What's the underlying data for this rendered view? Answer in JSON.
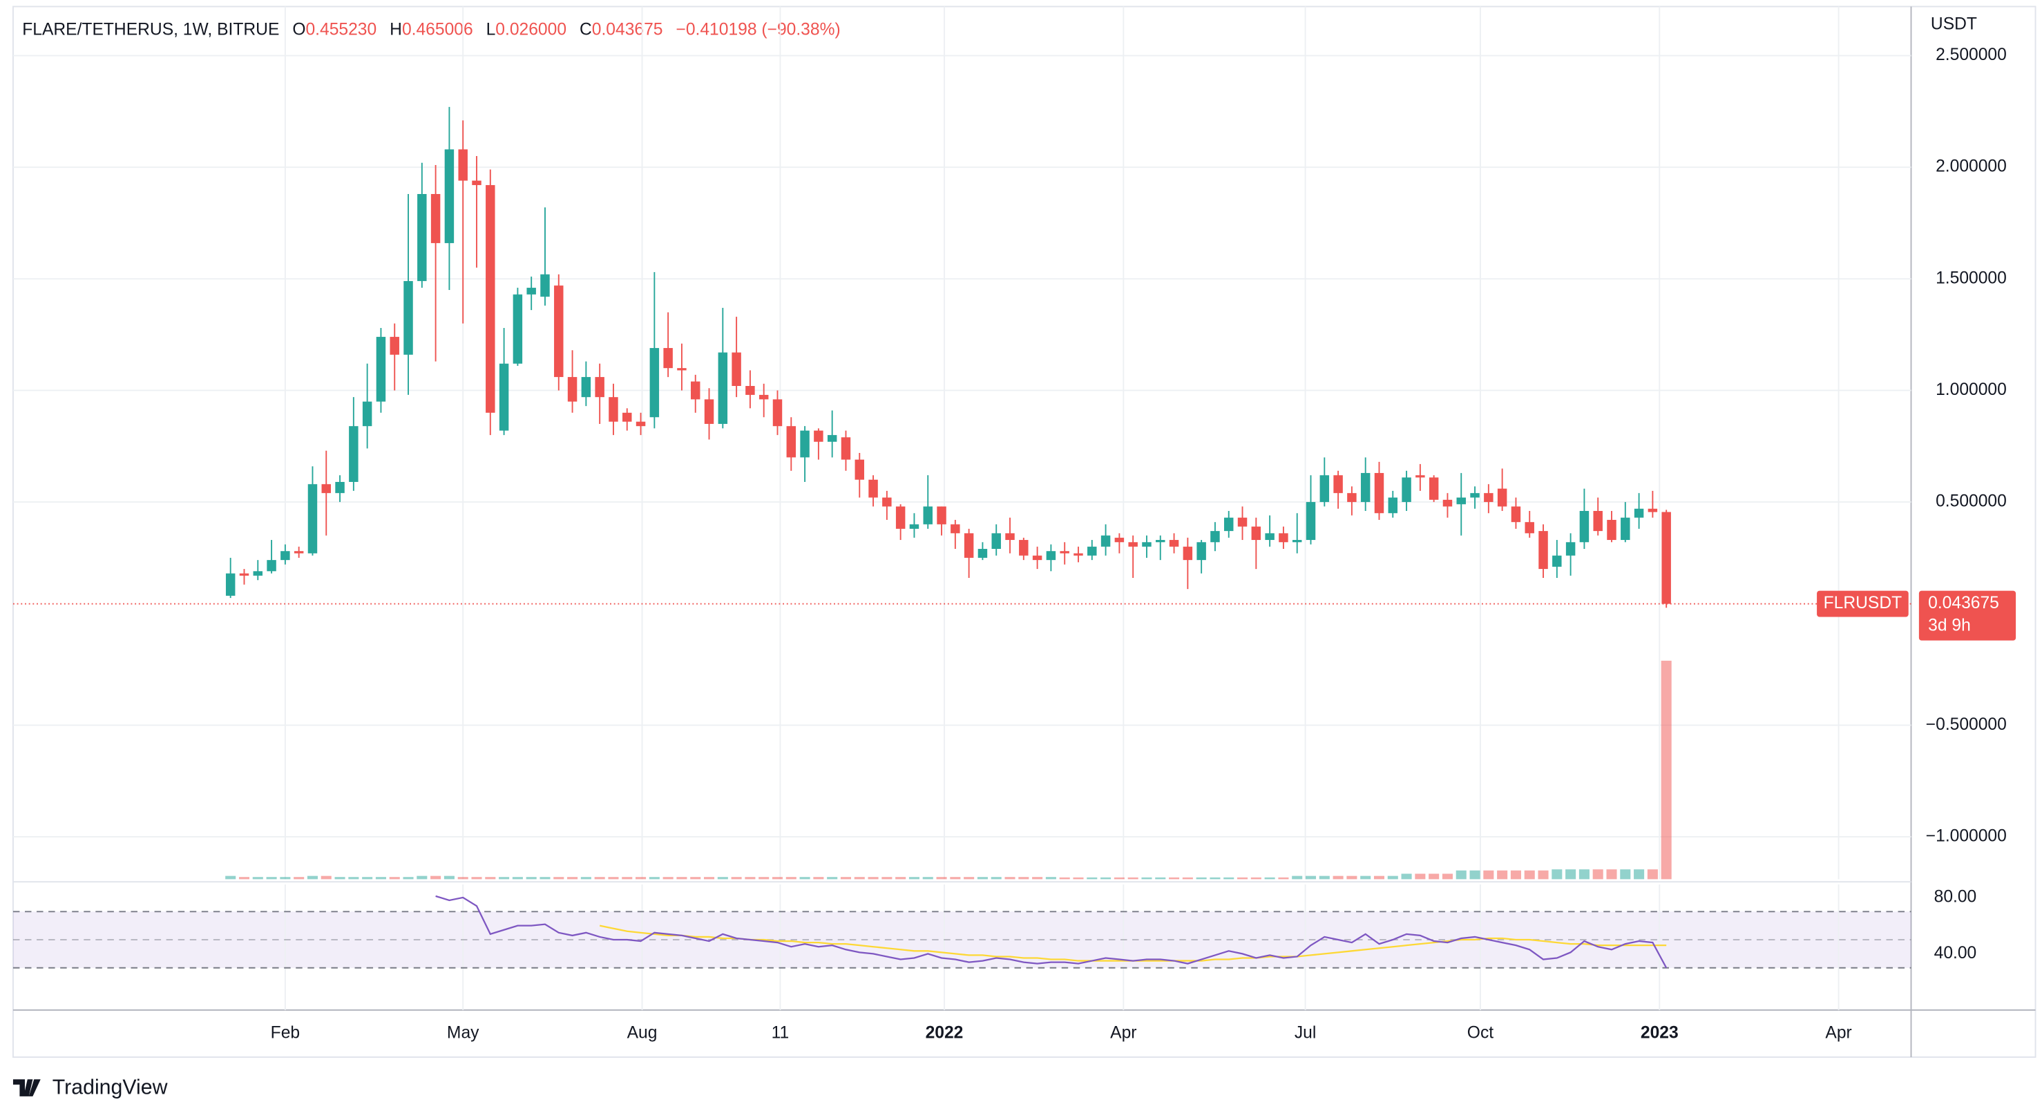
{
  "header": {
    "symbol": "FLARE/TETHERUS, 1W, BITRUE",
    "fields": [
      {
        "key": "O",
        "value": "0.455230"
      },
      {
        "key": "H",
        "value": "0.465006"
      },
      {
        "key": "L",
        "value": "0.026000"
      },
      {
        "key": "C",
        "value": "0.043675"
      }
    ],
    "change": "−0.410198 (−90.38%)"
  },
  "last_price": {
    "symbol": "FLRUSDT",
    "price": "0.043675",
    "countdown": "3d 9h"
  },
  "brand": "TradingView",
  "chart_data": {
    "type": "candlestick",
    "up_color": "#26a69a",
    "down_color": "#ef5350",
    "grid": true,
    "y_axis_label": "USDT",
    "open": [
      0.08,
      0.18,
      0.17,
      0.19,
      0.24,
      0.28,
      0.27,
      0.58,
      0.54,
      0.59,
      0.84,
      0.95,
      1.24,
      1.16,
      1.49,
      1.88,
      1.66,
      2.08,
      1.94,
      1.92,
      0.82,
      1.12,
      1.43,
      1.42,
      1.47,
      1.06,
      0.97,
      1.06,
      0.97,
      0.9,
      0.86,
      0.88,
      1.19,
      1.1,
      1.04,
      0.96,
      0.85,
      1.17,
      1.02,
      0.98,
      0.96,
      0.84,
      0.7,
      0.82,
      0.77,
      0.79,
      0.69,
      0.6,
      0.52,
      0.48,
      0.38,
      0.4,
      0.48,
      0.4,
      0.36,
      0.25,
      0.29,
      0.36,
      0.33,
      0.26,
      0.24,
      0.28,
      0.27,
      0.26,
      0.3,
      0.34,
      0.32,
      0.3,
      0.32,
      0.33,
      0.3,
      0.24,
      0.32,
      0.37,
      0.43,
      0.39,
      0.33,
      0.36,
      0.32,
      0.33,
      0.5,
      0.62,
      0.54,
      0.5,
      0.63,
      0.45,
      0.5,
      0.62,
      0.61,
      0.51,
      0.49,
      0.52,
      0.54,
      0.56,
      0.48,
      0.41,
      0.37,
      0.21,
      0.26,
      0.32,
      0.46,
      0.42,
      0.33,
      0.43,
      0.47,
      0.45523
    ],
    "high": [
      0.25,
      0.2,
      0.24,
      0.33,
      0.31,
      0.3,
      0.66,
      0.73,
      0.62,
      0.97,
      1.12,
      1.28,
      1.3,
      1.88,
      2.02,
      2.01,
      2.27,
      2.21,
      2.05,
      1.99,
      1.28,
      1.46,
      1.51,
      1.82,
      1.52,
      1.18,
      1.13,
      1.12,
      1.03,
      0.92,
      0.9,
      1.53,
      1.35,
      1.21,
      1.07,
      1.01,
      1.37,
      1.33,
      1.09,
      1.03,
      1.0,
      0.88,
      0.84,
      0.83,
      0.91,
      0.82,
      0.72,
      0.62,
      0.55,
      0.49,
      0.45,
      0.62,
      0.48,
      0.42,
      0.38,
      0.32,
      0.4,
      0.43,
      0.34,
      0.3,
      0.31,
      0.32,
      0.3,
      0.33,
      0.4,
      0.36,
      0.35,
      0.35,
      0.35,
      0.36,
      0.34,
      0.33,
      0.41,
      0.46,
      0.48,
      0.43,
      0.44,
      0.39,
      0.45,
      0.62,
      0.7,
      0.64,
      0.57,
      0.7,
      0.68,
      0.55,
      0.64,
      0.67,
      0.62,
      0.54,
      0.63,
      0.57,
      0.58,
      0.65,
      0.52,
      0.46,
      0.4,
      0.33,
      0.36,
      0.56,
      0.52,
      0.46,
      0.5,
      0.54,
      0.55,
      0.465006
    ],
    "low": [
      0.07,
      0.13,
      0.15,
      0.18,
      0.22,
      0.25,
      0.26,
      0.35,
      0.5,
      0.55,
      0.74,
      0.9,
      1.0,
      0.98,
      1.46,
      1.13,
      1.45,
      1.3,
      1.55,
      0.8,
      0.8,
      1.11,
      1.36,
      1.38,
      1.0,
      0.9,
      0.93,
      0.85,
      0.8,
      0.82,
      0.8,
      0.83,
      1.06,
      1.0,
      0.9,
      0.78,
      0.83,
      0.97,
      0.92,
      0.88,
      0.8,
      0.64,
      0.59,
      0.69,
      0.7,
      0.64,
      0.52,
      0.48,
      0.42,
      0.33,
      0.34,
      0.38,
      0.35,
      0.29,
      0.16,
      0.24,
      0.26,
      0.27,
      0.24,
      0.2,
      0.19,
      0.22,
      0.23,
      0.24,
      0.26,
      0.27,
      0.16,
      0.25,
      0.24,
      0.27,
      0.11,
      0.18,
      0.28,
      0.34,
      0.33,
      0.2,
      0.3,
      0.29,
      0.27,
      0.31,
      0.48,
      0.47,
      0.44,
      0.46,
      0.42,
      0.43,
      0.46,
      0.55,
      0.5,
      0.43,
      0.35,
      0.47,
      0.45,
      0.46,
      0.38,
      0.34,
      0.16,
      0.16,
      0.17,
      0.29,
      0.35,
      0.32,
      0.32,
      0.38,
      0.43,
      0.026
    ],
    "close": [
      0.18,
      0.17,
      0.19,
      0.24,
      0.28,
      0.27,
      0.58,
      0.54,
      0.59,
      0.84,
      0.95,
      1.24,
      1.16,
      1.49,
      1.88,
      1.66,
      2.08,
      1.94,
      1.92,
      0.9,
      1.12,
      1.43,
      1.46,
      1.52,
      1.06,
      0.95,
      1.06,
      0.97,
      0.86,
      0.86,
      0.84,
      1.19,
      1.1,
      1.09,
      0.96,
      0.85,
      1.17,
      1.02,
      0.98,
      0.96,
      0.84,
      0.7,
      0.82,
      0.77,
      0.8,
      0.69,
      0.6,
      0.52,
      0.48,
      0.38,
      0.4,
      0.48,
      0.4,
      0.36,
      0.25,
      0.29,
      0.36,
      0.33,
      0.26,
      0.24,
      0.28,
      0.27,
      0.26,
      0.3,
      0.35,
      0.32,
      0.3,
      0.32,
      0.33,
      0.3,
      0.24,
      0.32,
      0.37,
      0.43,
      0.39,
      0.33,
      0.36,
      0.32,
      0.33,
      0.5,
      0.62,
      0.54,
      0.5,
      0.63,
      0.45,
      0.52,
      0.61,
      0.61,
      0.51,
      0.48,
      0.52,
      0.54,
      0.5,
      0.48,
      0.41,
      0.36,
      0.2,
      0.26,
      0.32,
      0.46,
      0.37,
      0.33,
      0.43,
      0.47,
      0.455,
      0.043675
    ],
    "xlim": [
      -15.9,
      122.9
    ],
    "xticks": [
      {
        "value": 4.0,
        "label": "Feb"
      },
      {
        "value": 17.0,
        "label": "May"
      },
      {
        "value": 30.1,
        "label": "Aug"
      },
      {
        "value": 40.2,
        "label": "11"
      },
      {
        "value": 52.2,
        "label": "2022"
      },
      {
        "value": 65.3,
        "label": "Apr"
      },
      {
        "value": 78.6,
        "label": "Jul"
      },
      {
        "value": 91.4,
        "label": "Oct"
      },
      {
        "value": 104.5,
        "label": "2023"
      },
      {
        "value": 117.6,
        "label": "Apr"
      }
    ],
    "ylim": [
      -1.19,
      2.72
    ],
    "yticks": [
      {
        "value": 2.5,
        "label": "2.500000"
      },
      {
        "value": 2.0,
        "label": "2.000000"
      },
      {
        "value": 1.5,
        "label": "1.500000"
      },
      {
        "value": 1.0,
        "label": "1.000000"
      },
      {
        "value": 0.5,
        "label": "0.500000"
      },
      {
        "value": -0.5,
        "label": "−0.500000"
      },
      {
        "value": -1.0,
        "label": "−1.000000"
      }
    ],
    "volume": {
      "ylim": [
        0,
        100
      ],
      "values": [
        1.5,
        1,
        1,
        1,
        1,
        1,
        1.5,
        1.5,
        1,
        1,
        1,
        1,
        1,
        1,
        1.5,
        1.5,
        1.5,
        1,
        1,
        1,
        1,
        1,
        1,
        1,
        1,
        1,
        1,
        1,
        1,
        1,
        1,
        1,
        1,
        1,
        1,
        1,
        1,
        1,
        1,
        1,
        1,
        1,
        1,
        1,
        1,
        1,
        1,
        1,
        1,
        1,
        1,
        1,
        1,
        1,
        1,
        1,
        1,
        1,
        1,
        1,
        1,
        0.8,
        0.8,
        0.8,
        0.8,
        0.8,
        0.8,
        0.8,
        0.8,
        0.8,
        0.8,
        0.8,
        0.8,
        0.8,
        0.8,
        0.8,
        0.8,
        0.8,
        1.5,
        1.5,
        1.5,
        1.5,
        1.5,
        1.5,
        1.5,
        1.5,
        2.5,
        2.5,
        2.5,
        2.5,
        4,
        4,
        4,
        4,
        4,
        4,
        4,
        4.5,
        4.5,
        4.5,
        4.5,
        4.5,
        4.5,
        4.5,
        4.5,
        100
      ]
    },
    "rsi": {
      "ylim": [
        0,
        89.3
      ],
      "yticks": [
        {
          "value": 80,
          "label": "80.00"
        },
        {
          "value": 40,
          "label": "40.00"
        }
      ],
      "levels": [
        70,
        50,
        30
      ],
      "color": "#7e57c2",
      "ma_color": "#fdd835",
      "values": [
        null,
        null,
        null,
        null,
        null,
        null,
        null,
        null,
        null,
        null,
        null,
        null,
        null,
        null,
        null,
        81,
        78,
        80,
        74,
        54,
        57,
        60,
        60,
        61,
        55,
        53,
        55,
        52,
        50,
        50,
        49,
        55,
        54,
        53,
        51,
        49,
        54,
        51,
        50,
        49,
        48,
        45,
        47,
        45,
        46,
        43,
        41,
        40,
        38,
        36,
        37,
        40,
        37,
        36,
        34,
        35,
        37,
        36,
        34,
        33,
        34,
        34,
        33,
        35,
        37,
        36,
        35,
        36,
        36,
        35,
        33,
        36,
        39,
        42,
        40,
        37,
        39,
        37,
        38,
        46,
        52,
        50,
        48,
        54,
        47,
        50,
        54,
        53,
        49,
        48,
        51,
        52,
        50,
        48,
        46,
        43,
        36,
        37,
        41,
        49,
        45,
        43,
        47,
        49,
        48,
        30
      ],
      "ma": [
        null,
        null,
        null,
        null,
        null,
        null,
        null,
        null,
        null,
        null,
        null,
        null,
        null,
        null,
        null,
        null,
        null,
        null,
        null,
        null,
        null,
        null,
        null,
        null,
        null,
        null,
        null,
        60,
        58,
        56,
        55,
        54,
        53,
        53,
        52,
        52,
        51,
        51,
        50,
        50,
        49,
        49,
        48,
        48,
        47,
        47,
        46,
        45,
        44,
        43,
        42,
        42,
        41,
        40,
        39,
        39,
        38,
        38,
        37,
        37,
        36,
        36,
        35,
        35,
        35,
        35,
        35,
        35,
        35,
        35,
        35,
        35,
        36,
        36,
        37,
        37,
        38,
        38,
        38,
        39,
        40,
        41,
        42,
        43,
        44,
        45,
        46,
        47,
        48,
        49,
        50,
        50,
        51,
        51,
        50,
        50,
        49,
        48,
        47,
        47,
        46,
        46,
        46,
        46,
        46,
        46
      ]
    }
  }
}
